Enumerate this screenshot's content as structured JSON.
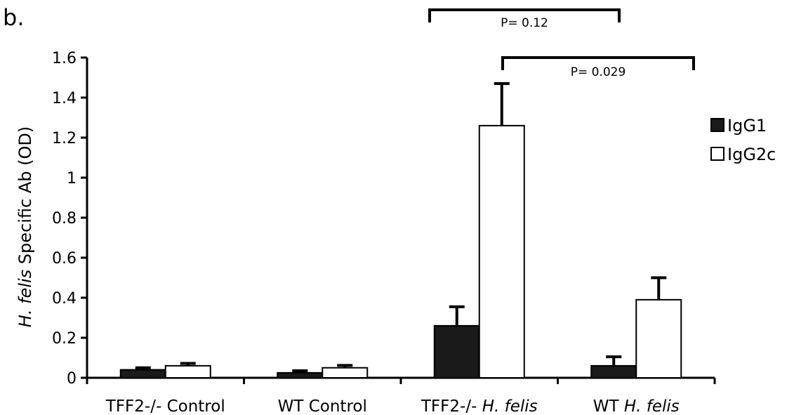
{
  "panel_label": "b.",
  "chart_data": {
    "type": "bar",
    "ylabel_italic": "H. felis",
    "ylabel_rest": " Specific Ab (OD)",
    "ylim": [
      0,
      1.6
    ],
    "yticks": [
      "0",
      "0.2",
      "0.4",
      "0.6",
      "0.8",
      "1",
      "1.2",
      "1.4",
      "1.6"
    ],
    "grid": false,
    "legend_position": "right",
    "categories": [
      {
        "main": "TFF2-/- Control",
        "italic": ""
      },
      {
        "main": "WT Control",
        "italic": ""
      },
      {
        "main": "TFF2-/- ",
        "italic": "H. felis"
      },
      {
        "main": "WT ",
        "italic": "H. felis"
      }
    ],
    "series": [
      {
        "name": "IgG1",
        "color": "#1a1a1a",
        "values": [
          0.04,
          0.025,
          0.26,
          0.06
        ],
        "errors": [
          0.01,
          0.01,
          0.095,
          0.045
        ]
      },
      {
        "name": "IgG2c",
        "color": "#ffffff",
        "values": [
          0.06,
          0.05,
          1.26,
          0.39
        ],
        "errors": [
          0.012,
          0.012,
          0.21,
          0.11
        ]
      }
    ],
    "annotations": [
      {
        "text": "P= 0.12",
        "from": [
          2,
          1
        ],
        "to": [
          3,
          0
        ]
      },
      {
        "text": "P= 0.029",
        "from": [
          2,
          1
        ],
        "to": [
          3,
          1
        ]
      }
    ]
  }
}
